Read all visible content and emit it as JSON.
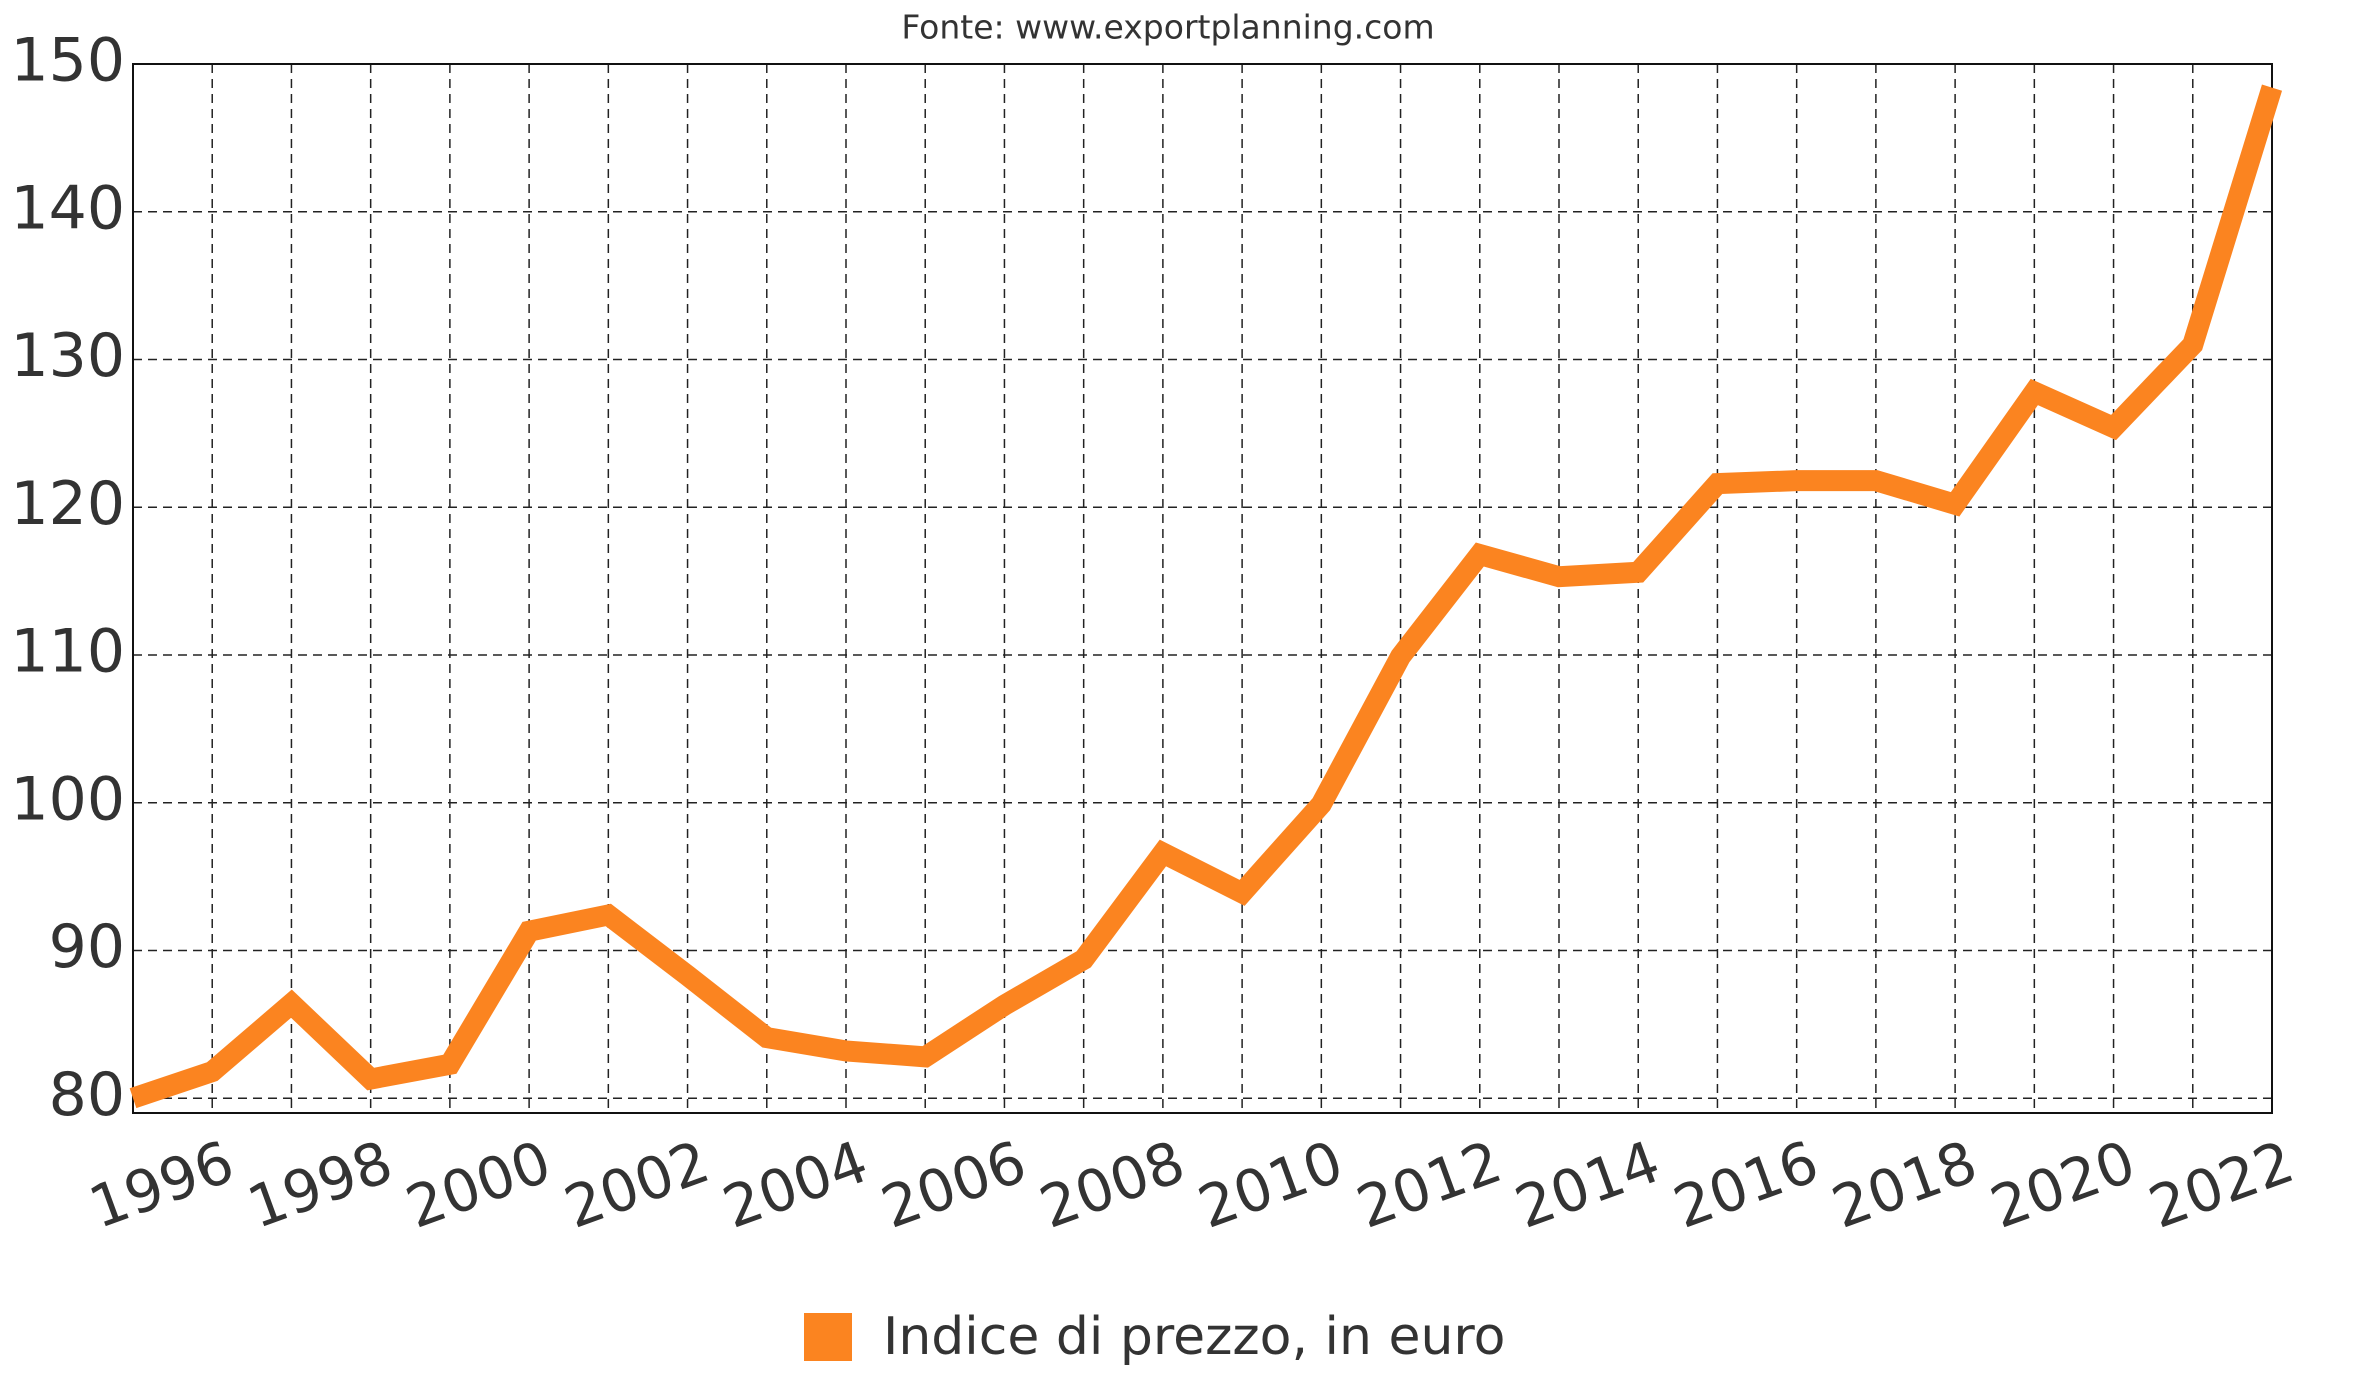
{
  "chart_data": {
    "type": "line",
    "source": "Fonte: www.exportplanning.com",
    "x": [
      1995,
      1996,
      1997,
      1998,
      1999,
      2000,
      2001,
      2002,
      2003,
      2004,
      2005,
      2006,
      2007,
      2008,
      2009,
      2010,
      2011,
      2012,
      2013,
      2014,
      2015,
      2016,
      2017,
      2018,
      2019,
      2020,
      2021,
      2022
    ],
    "series": [
      {
        "name": "Indice di prezzo, in euro",
        "color": "#fb8420",
        "values": [
          80,
          81.8,
          86.4,
          81.3,
          82.3,
          91.3,
          92.4,
          88.3,
          84.1,
          83.2,
          82.8,
          86.3,
          89.4,
          96.6,
          93.9,
          99.9,
          109.9,
          116.8,
          115.3,
          115.6,
          121.6,
          121.8,
          121.8,
          120.2,
          127.8,
          125.4,
          131,
          148.4
        ]
      }
    ],
    "xlim": [
      1995,
      2022
    ],
    "xticks": [
      1996,
      1998,
      2000,
      2002,
      2004,
      2006,
      2008,
      2010,
      2012,
      2014,
      2016,
      2018,
      2020,
      2022
    ],
    "x_minor_ticks": [
      1997,
      1999,
      2001,
      2003,
      2005,
      2007,
      2009,
      2011,
      2013,
      2015,
      2017,
      2019,
      2021
    ],
    "ylim": [
      79,
      150
    ],
    "yticks": [
      80,
      90,
      100,
      110,
      120,
      130,
      140,
      150
    ],
    "grid": true,
    "legend": "bottom"
  }
}
